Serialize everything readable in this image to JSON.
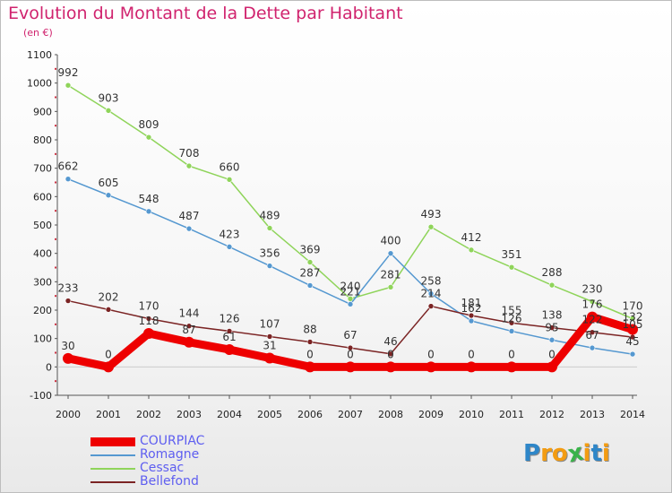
{
  "title": "Evolution du Montant de la Dette par Habitant",
  "unit_note": "(en €)",
  "brand": {
    "letters": [
      "P",
      "r",
      "o",
      "x",
      "i",
      "t",
      "i"
    ],
    "colors": [
      "#2e86c8",
      "#f39c12",
      "#f39c12",
      "#3ab34a",
      "#f39c12",
      "#2e86c8",
      "#f39c12"
    ]
  },
  "chart_data": {
    "type": "line",
    "x": [
      "2000",
      "2001",
      "2002",
      "2003",
      "2004",
      "2005",
      "2006",
      "2007",
      "2008",
      "2009",
      "2010",
      "2011",
      "2012",
      "2013",
      "2014"
    ],
    "yticks": [
      "1100",
      "1000",
      "900",
      "800",
      "700",
      "600",
      "500",
      "400",
      "300",
      "200",
      "100",
      "0",
      "-100"
    ],
    "ylim": [
      -100,
      1100
    ],
    "grid": false,
    "legend_position": "bottom-left",
    "series": [
      {
        "name": "Cessac",
        "color": "#8fd45a",
        "values": [
          992,
          903,
          809,
          708,
          660,
          489,
          369,
          240,
          281,
          493,
          412,
          351,
          288,
          230,
          170
        ],
        "labels": [
          "992",
          "903",
          "809",
          "708",
          "660",
          "489",
          "369",
          "240",
          "281",
          "493",
          "412",
          "351",
          "288",
          "230",
          "170"
        ]
      },
      {
        "name": "Romagne",
        "color": "#5598d0",
        "values": [
          662,
          605,
          548,
          487,
          423,
          356,
          287,
          221,
          400,
          258,
          162,
          126,
          95,
          67,
          45
        ],
        "labels": [
          "662",
          "605",
          "548",
          "487",
          "423",
          "356",
          "287",
          "221",
          "400",
          "258",
          "162",
          "126",
          "95",
          "67",
          "45"
        ]
      },
      {
        "name": "Bellefond",
        "color": "#7b2424",
        "values": [
          233,
          202,
          170,
          144,
          126,
          107,
          88,
          67,
          46,
          214,
          181,
          155,
          138,
          122,
          105
        ],
        "labels": [
          "233",
          "202",
          "170",
          "144",
          "126",
          "107",
          "88",
          "67",
          "46",
          "214",
          "181",
          "155",
          "138",
          "122",
          "105"
        ]
      },
      {
        "name": "COURPIAC",
        "color": "#ee0000",
        "values": [
          30,
          0,
          118,
          87,
          61,
          31,
          0,
          0,
          0,
          0,
          0,
          0,
          0,
          176,
          132
        ],
        "labels": [
          "30",
          "0",
          "118",
          "87",
          "61",
          "31",
          "0",
          "0",
          "0",
          "0",
          "0",
          "0",
          "0",
          "176",
          "132"
        ]
      }
    ],
    "legend": [
      {
        "name": "COURPIAC",
        "color": "#ee0000",
        "text_color": "#5e5ef0"
      },
      {
        "name": "Romagne",
        "color": "#5598d0",
        "text_color": "#5e5ef0"
      },
      {
        "name": "Cessac",
        "color": "#8fd45a",
        "text_color": "#5e5ef0"
      },
      {
        "name": "Bellefond",
        "color": "#7b2424",
        "text_color": "#5e5ef0"
      }
    ]
  }
}
